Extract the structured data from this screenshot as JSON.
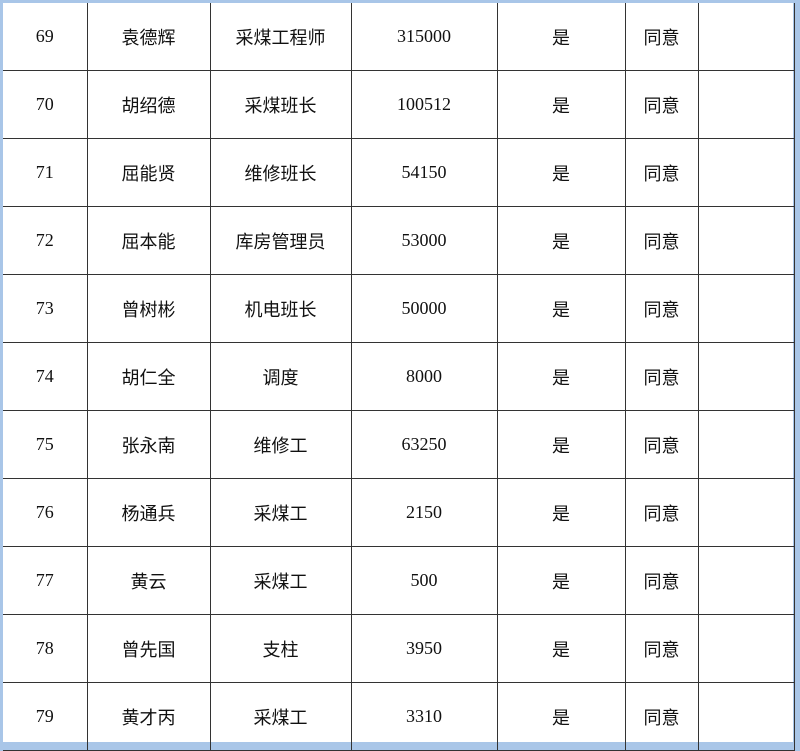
{
  "rows": [
    [
      "69",
      "袁德辉",
      "采煤工程师",
      "315000",
      "是",
      "同意",
      ""
    ],
    [
      "70",
      "胡绍德",
      "采煤班长",
      "100512",
      "是",
      "同意",
      ""
    ],
    [
      "71",
      "屈能贤",
      "维修班长",
      "54150",
      "是",
      "同意",
      ""
    ],
    [
      "72",
      "屈本能",
      "库房管理员",
      "53000",
      "是",
      "同意",
      ""
    ],
    [
      "73",
      "曾树彬",
      "机电班长",
      "50000",
      "是",
      "同意",
      ""
    ],
    [
      "74",
      "胡仁全",
      "调度",
      "8000",
      "是",
      "同意",
      ""
    ],
    [
      "75",
      "张永南",
      "维修工",
      "63250",
      "是",
      "同意",
      ""
    ],
    [
      "76",
      "杨通兵",
      "采煤工",
      "2150",
      "是",
      "同意",
      ""
    ],
    [
      "77",
      "黄云",
      "采煤工",
      "500",
      "是",
      "同意",
      ""
    ],
    [
      "78",
      "曾先国",
      "支柱",
      "3950",
      "是",
      "同意",
      ""
    ],
    [
      "79",
      "黄才丙",
      "采煤工",
      "3310",
      "是",
      "同意",
      ""
    ]
  ]
}
